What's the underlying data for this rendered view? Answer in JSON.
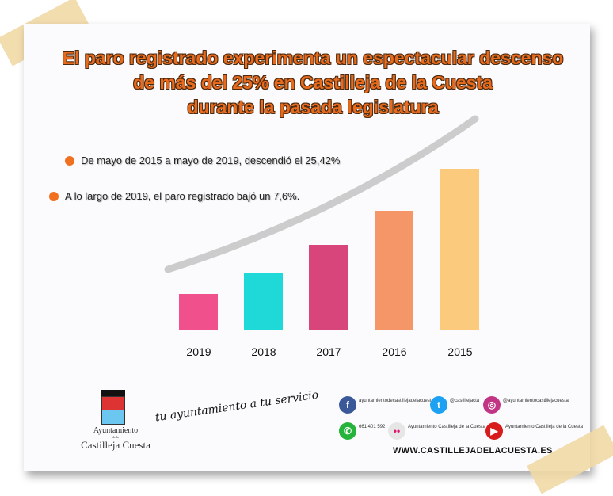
{
  "title": {
    "line1": "El paro registrado experimenta un espectacular descenso",
    "line2": "de más del 25% en Castilleja de la Cuesta",
    "line3": "durante la pasada legislatura"
  },
  "bullets": [
    "De mayo de 2015 a mayo de 2019, descendió el 25,42%",
    "A lo largo de 2019, el paro registrado bajó un 7,6%."
  ],
  "chart_data": {
    "type": "bar",
    "categories": [
      "2019",
      "2018",
      "2017",
      "2016",
      "2015"
    ],
    "values": [
      46,
      72,
      108,
      151,
      204
    ],
    "colors": [
      "#f0508c",
      "#1fd8d8",
      "#d8457a",
      "#f59668",
      "#fcca7c"
    ],
    "ylim": [
      0,
      210
    ],
    "grid": false,
    "title": "",
    "xlabel": "",
    "ylabel": ""
  },
  "footer": {
    "logo_line1": "Ayuntamiento",
    "logo_small": "de la",
    "logo_line2": "Castilleja Cuesta",
    "slogan": "tu ayuntamiento a tu servicio",
    "social": [
      {
        "icon": "facebook-icon",
        "text": "ayuntamientodecastillejadelacuesta",
        "color": "#3b5998"
      },
      {
        "icon": "twitter-icon",
        "text": "@castillejacta",
        "color": "#1da1f2"
      },
      {
        "icon": "instagram-icon",
        "text": "@ayuntamientocastillejacuesta",
        "color": "#c13584"
      },
      {
        "icon": "whatsapp-icon",
        "text": "661 401 592",
        "color": "#25b33b"
      },
      {
        "icon": "flickr-icon",
        "text": "Ayuntamiento Castilleja de la Cuesta",
        "color": "#e6e6e6"
      },
      {
        "icon": "youtube-icon",
        "text": "Ayuntamiento Castilleja de la Cuesta",
        "color": "#d81c1c"
      }
    ],
    "website": "WWW.CASTILLEJADELACUESTA.ES"
  }
}
